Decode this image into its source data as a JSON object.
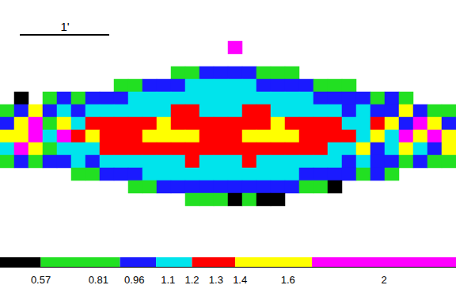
{
  "chart_data": {
    "type": "heatmap",
    "tick_labels": false,
    "annotations": [
      "1'"
    ],
    "cells": [
      [
        null,
        null,
        null,
        null,
        null,
        null,
        null,
        null,
        null,
        null,
        null,
        null,
        null,
        null,
        null,
        null,
        2,
        null,
        null,
        null,
        null,
        null,
        null,
        null,
        null,
        null,
        null,
        null,
        null,
        null,
        null,
        null
      ],
      [
        null,
        null,
        null,
        null,
        null,
        null,
        null,
        null,
        null,
        null,
        null,
        null,
        null,
        null,
        null,
        null,
        null,
        null,
        null,
        null,
        null,
        null,
        null,
        null,
        null,
        null,
        null,
        null,
        null,
        null,
        null,
        null
      ],
      [
        null,
        null,
        null,
        null,
        null,
        null,
        null,
        null,
        null,
        null,
        null,
        null,
        0.7,
        0.7,
        1,
        1,
        1,
        1,
        0.7,
        0.7,
        0.7,
        null,
        null,
        null,
        null,
        null,
        null,
        null,
        null,
        null,
        null,
        null
      ],
      [
        null,
        null,
        null,
        null,
        null,
        null,
        null,
        null,
        0.7,
        0.7,
        1,
        1,
        1,
        1.1,
        1.1,
        1.1,
        1.1,
        1.1,
        1,
        1,
        1,
        1,
        0.7,
        0.7,
        0.7,
        null,
        null,
        null,
        null,
        null,
        null,
        null
      ],
      [
        null,
        0.5,
        null,
        0.7,
        1,
        0.7,
        1,
        1,
        1,
        1.1,
        1.1,
        1.1,
        1.1,
        1.1,
        1.1,
        1.1,
        1.1,
        1.1,
        1.1,
        1.1,
        1.1,
        1.1,
        1,
        1,
        1,
        1,
        0.7,
        1,
        0.7,
        null,
        null,
        null
      ],
      [
        0.7,
        1,
        1.5,
        1,
        1.1,
        1,
        1.1,
        1.1,
        1.1,
        1.1,
        1.1,
        1.1,
        1.3,
        1.3,
        1.1,
        1.1,
        1.1,
        1.3,
        1.3,
        1.1,
        1.1,
        1.1,
        1.1,
        1.1,
        1,
        1.1,
        1,
        1,
        1.5,
        1,
        0.7,
        0.7
      ],
      [
        1,
        1.5,
        2,
        0.7,
        1.5,
        1.1,
        1.3,
        1.3,
        1.3,
        1.3,
        1.3,
        1.5,
        1.3,
        1.3,
        1.3,
        1.3,
        1.3,
        1.3,
        1.3,
        1.5,
        1.3,
        1.3,
        1.3,
        1.3,
        1.1,
        1.1,
        1.3,
        1.5,
        1,
        2,
        1.5,
        1
      ],
      [
        1.5,
        1.5,
        2,
        1.1,
        2,
        1.3,
        1.5,
        1.3,
        1.3,
        1.3,
        1.5,
        1.5,
        1.5,
        1.5,
        1.3,
        1.3,
        1.3,
        1.5,
        1.5,
        1.5,
        1.5,
        1.3,
        1.3,
        1.3,
        1.3,
        1.1,
        1.5,
        1.1,
        2,
        1.5,
        2,
        1.5
      ],
      [
        1.1,
        2,
        1.5,
        0.7,
        1.1,
        1.1,
        1.1,
        1.3,
        1.3,
        1.3,
        1.3,
        1.3,
        1.3,
        1.3,
        1.3,
        1.3,
        1.3,
        1.3,
        1.3,
        1.3,
        1.3,
        1.3,
        1.3,
        1.1,
        1.1,
        1.5,
        1,
        1.1,
        1.5,
        1.1,
        1,
        1.5
      ],
      [
        0.7,
        1,
        0.7,
        1,
        1,
        1.1,
        1,
        1.1,
        1.1,
        1.1,
        1.1,
        1.1,
        1.1,
        1.3,
        1.1,
        1.1,
        1.1,
        1.3,
        1.1,
        1.1,
        1.1,
        1.1,
        1.1,
        1.1,
        1,
        1.1,
        1,
        1,
        0.7,
        1,
        0.7,
        0.7
      ],
      [
        null,
        null,
        null,
        null,
        null,
        0.7,
        0.7,
        1,
        1,
        1,
        1.1,
        1.1,
        1.1,
        1.1,
        1.1,
        1.1,
        1.1,
        1.1,
        1.1,
        1.1,
        1.1,
        1,
        1,
        1,
        1,
        0.7,
        1,
        0.7,
        null,
        null,
        null,
        null
      ],
      [
        null,
        null,
        null,
        null,
        null,
        null,
        null,
        null,
        null,
        0.7,
        0.7,
        1,
        1,
        1,
        1,
        1,
        1,
        1,
        1,
        1,
        1,
        0.7,
        0.7,
        0.5,
        null,
        null,
        null,
        null,
        null,
        null,
        null,
        null
      ],
      [
        null,
        null,
        null,
        null,
        null,
        null,
        null,
        null,
        null,
        null,
        null,
        null,
        null,
        0.7,
        0.7,
        0.7,
        0.5,
        0.7,
        0.5,
        0.5,
        null,
        null,
        null,
        null,
        null,
        null,
        null,
        null,
        null,
        null,
        null,
        null
      ],
      [
        null,
        null,
        null,
        null,
        null,
        null,
        null,
        null,
        null,
        null,
        null,
        null,
        null,
        null,
        null,
        null,
        null,
        null,
        null,
        null,
        null,
        null,
        null,
        null,
        null,
        null,
        null,
        null,
        null,
        null,
        null,
        null
      ]
    ],
    "colorbar": {
      "range": [
        0.4,
        2.3
      ],
      "ticks": [
        0.57,
        0.81,
        0.96,
        1.1,
        1.2,
        1.3,
        1.4,
        1.6,
        2
      ],
      "pieces": [
        {
          "min": 0.4,
          "max": 0.57,
          "color": "#000000"
        },
        {
          "min": 0.57,
          "max": 0.9,
          "color": "#22e022"
        },
        {
          "min": 0.9,
          "max": 1.05,
          "color": "#1a1aff"
        },
        {
          "min": 1.05,
          "max": 1.2,
          "color": "#00e4ec"
        },
        {
          "min": 1.2,
          "max": 1.38,
          "color": "#ff0000"
        },
        {
          "min": 1.38,
          "max": 1.7,
          "color": "#ffff00"
        },
        {
          "min": 1.7,
          "max": 2.3,
          "color": "#ff00ff"
        }
      ]
    }
  }
}
